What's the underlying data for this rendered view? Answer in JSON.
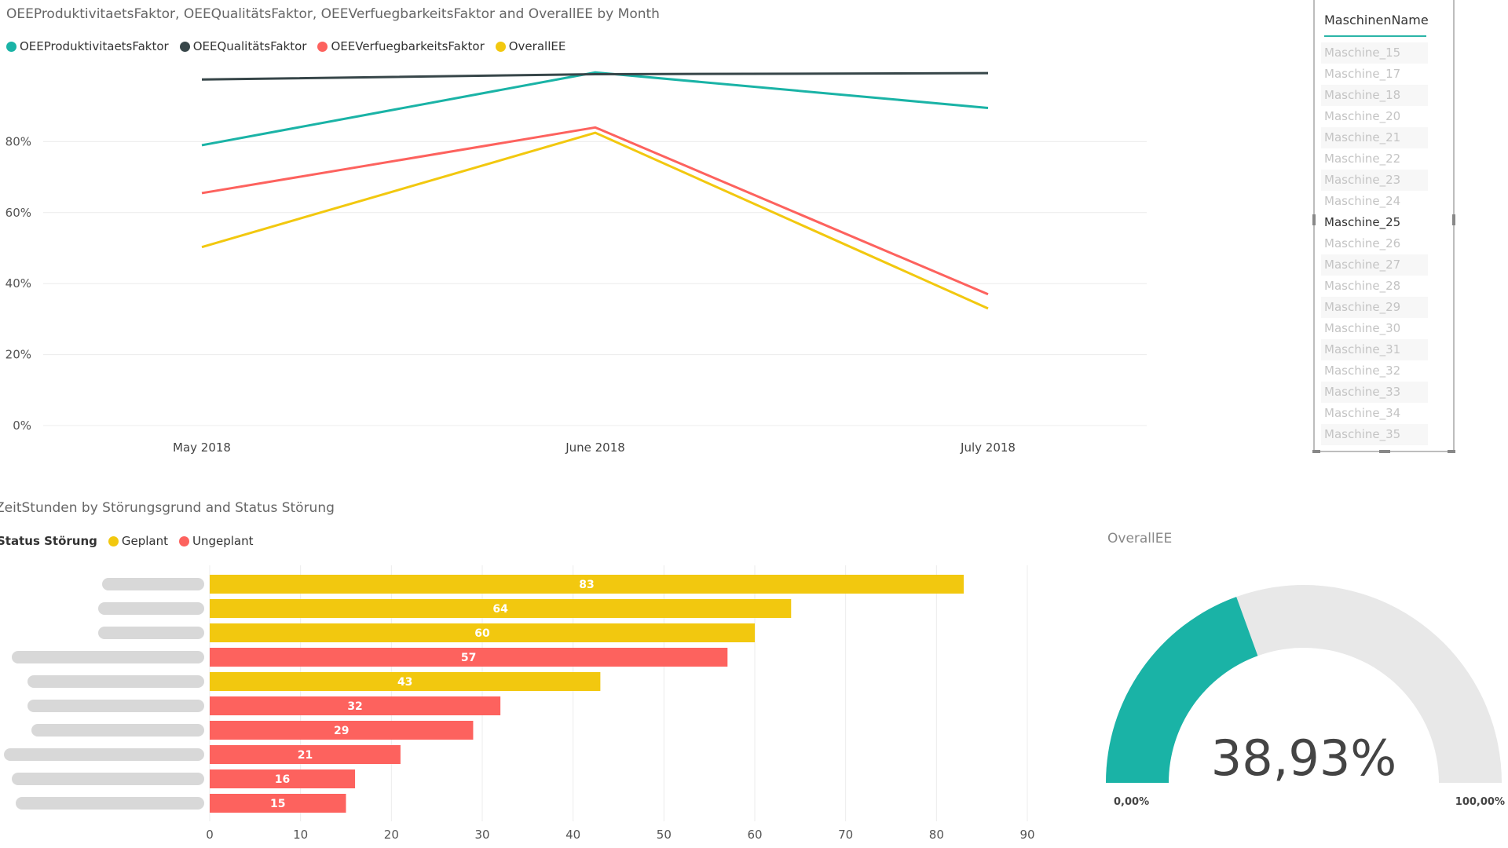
{
  "colors": {
    "teal": "#1ab3a6",
    "dark": "#374649",
    "red": "#fd625e",
    "yellow": "#f2c80f",
    "grid": "#eeeeee",
    "gauge_bg": "#e8e8e8"
  },
  "line_chart": {
    "title": "OEEProduktivitaetsFaktor, OEEQualitätsFaktor, OEEVerfuegbarkeitsFaktor and OverallEE by Month",
    "legend": [
      "OEEProduktivitaetsFaktor",
      "OEEQualitätsFaktor",
      "OEEVerfuegbarkeitsFaktor",
      "OverallEE"
    ]
  },
  "bar_chart": {
    "title": "ZeitStunden by Störungsgrund and Status Störung",
    "legend_title": "Status Störung",
    "legend": [
      "Geplant",
      "Ungeplant"
    ]
  },
  "chart_data": [
    {
      "type": "line",
      "title": "OEEProduktivitaetsFaktor, OEEQualitätsFaktor, OEEVerfuegbarkeitsFaktor and OverallEE by Month",
      "categories": [
        "May 2018",
        "June 2018",
        "July 2018"
      ],
      "series": [
        {
          "name": "OEEProduktivitaetsFaktor",
          "color": "#1ab3a6",
          "values": [
            79,
            99.5,
            89.5
          ]
        },
        {
          "name": "OEEQualitätsFaktor",
          "color": "#374649",
          "values": [
            97.5,
            99,
            99.3
          ]
        },
        {
          "name": "OEEVerfuegbarkeitsFaktor",
          "color": "#fd625e",
          "values": [
            65.5,
            84,
            37
          ]
        },
        {
          "name": "OverallEE",
          "color": "#f2c80f",
          "values": [
            50.3,
            82.5,
            33
          ]
        }
      ],
      "yticks": [
        "0%",
        "20%",
        "40%",
        "60%",
        "80%"
      ],
      "ylim": [
        0,
        100
      ],
      "grid": true
    },
    {
      "type": "bar",
      "orientation": "horizontal",
      "title": "ZeitStunden by Störungsgrund and Status Störung",
      "legend_title": "Status Störung",
      "categories": [
        "",
        "",
        "",
        "",
        "",
        "",
        "",
        "",
        "",
        ""
      ],
      "values": [
        83,
        64,
        60,
        57,
        43,
        32,
        29,
        21,
        16,
        15
      ],
      "status": [
        "Geplant",
        "Geplant",
        "Geplant",
        "Ungeplant",
        "Geplant",
        "Ungeplant",
        "Ungeplant",
        "Ungeplant",
        "Ungeplant",
        "Ungeplant"
      ],
      "data_labels": [
        "83",
        "64",
        "60",
        "57",
        "43",
        "32",
        "29",
        "21",
        "16",
        "15"
      ],
      "xticks": [
        "0",
        "10",
        "20",
        "30",
        "40",
        "50",
        "60",
        "70",
        "80",
        "90"
      ],
      "xlim": [
        0,
        90
      ],
      "grid": true
    },
    {
      "type": "gauge",
      "title": "OverallEE",
      "value": 38.93,
      "min": 0,
      "max": 100,
      "value_label": "38,93%",
      "min_label": "0,00%",
      "max_label": "100,00%"
    }
  ],
  "slicer": {
    "header": "MaschinenName",
    "items": [
      "Maschine_15",
      "Maschine_17",
      "Maschine_18",
      "Maschine_20",
      "Maschine_21",
      "Maschine_22",
      "Maschine_23",
      "Maschine_24",
      "Maschine_25",
      "Maschine_26",
      "Maschine_27",
      "Maschine_28",
      "Maschine_29",
      "Maschine_30",
      "Maschine_31",
      "Maschine_32",
      "Maschine_33",
      "Maschine_34",
      "Maschine_35"
    ],
    "selected": "Maschine_25"
  }
}
